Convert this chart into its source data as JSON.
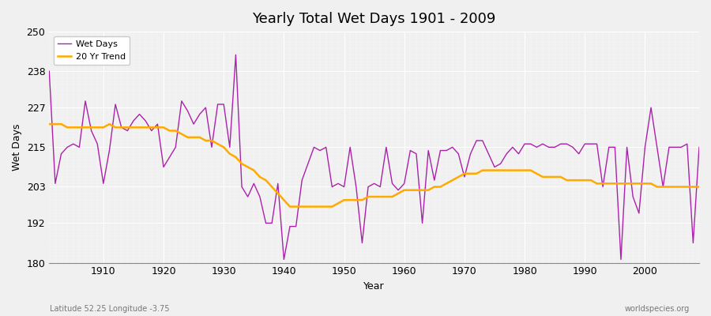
{
  "title": "Yearly Total Wet Days 1901 - 2009",
  "xlabel": "Year",
  "ylabel": "Wet Days",
  "subtitle_left": "Latitude 52.25 Longitude -3.75",
  "subtitle_right": "worldspecies.org",
  "ylim": [
    180,
    250
  ],
  "yticks": [
    180,
    192,
    203,
    215,
    227,
    238,
    250
  ],
  "bg_color": "#f0f0f0",
  "plot_bg_color": "#f0f0f0",
  "wet_days_color": "#aa22aa",
  "trend_color": "#ffaa00",
  "legend_labels": [
    "Wet Days",
    "20 Yr Trend"
  ],
  "years": [
    1901,
    1902,
    1903,
    1904,
    1905,
    1906,
    1907,
    1908,
    1909,
    1910,
    1911,
    1912,
    1913,
    1914,
    1915,
    1916,
    1917,
    1918,
    1919,
    1920,
    1921,
    1922,
    1923,
    1924,
    1925,
    1926,
    1927,
    1928,
    1929,
    1930,
    1931,
    1932,
    1933,
    1934,
    1935,
    1936,
    1937,
    1938,
    1939,
    1940,
    1941,
    1942,
    1943,
    1944,
    1945,
    1946,
    1947,
    1948,
    1949,
    1950,
    1951,
    1952,
    1953,
    1954,
    1955,
    1956,
    1957,
    1958,
    1959,
    1960,
    1961,
    1962,
    1963,
    1964,
    1965,
    1966,
    1967,
    1968,
    1969,
    1970,
    1971,
    1972,
    1973,
    1974,
    1975,
    1976,
    1977,
    1978,
    1979,
    1980,
    1981,
    1982,
    1983,
    1984,
    1985,
    1986,
    1987,
    1988,
    1989,
    1990,
    1991,
    1992,
    1993,
    1994,
    1995,
    1996,
    1997,
    1998,
    1999,
    2000,
    2001,
    2002,
    2003,
    2004,
    2005,
    2006,
    2007,
    2008,
    2009
  ],
  "wet_days": [
    238,
    204,
    213,
    215,
    216,
    215,
    229,
    220,
    216,
    204,
    214,
    228,
    221,
    220,
    223,
    225,
    223,
    220,
    222,
    209,
    212,
    215,
    229,
    226,
    222,
    225,
    227,
    215,
    228,
    228,
    215,
    243,
    203,
    200,
    204,
    200,
    192,
    192,
    204,
    181,
    191,
    191,
    205,
    210,
    215,
    214,
    215,
    203,
    204,
    203,
    215,
    203,
    186,
    203,
    204,
    203,
    215,
    204,
    202,
    204,
    214,
    213,
    192,
    214,
    205,
    214,
    214,
    215,
    213,
    206,
    213,
    217,
    217,
    213,
    209,
    210,
    213,
    215,
    213,
    216,
    216,
    215,
    216,
    215,
    215,
    216,
    216,
    215,
    213,
    216,
    216,
    216,
    203,
    215,
    215,
    181,
    215,
    200,
    195,
    215,
    227,
    215,
    203,
    215,
    215,
    215,
    216,
    186,
    215
  ],
  "trend": [
    222,
    222,
    222,
    221,
    221,
    221,
    221,
    221,
    221,
    221,
    222,
    221,
    221,
    221,
    221,
    221,
    221,
    221,
    221,
    221,
    220,
    220,
    219,
    218,
    218,
    218,
    217,
    217,
    216,
    215,
    213,
    212,
    210,
    209,
    208,
    206,
    205,
    203,
    201,
    199,
    197,
    197,
    197,
    197,
    197,
    197,
    197,
    197,
    198,
    199,
    199,
    199,
    199,
    200,
    200,
    200,
    200,
    200,
    201,
    202,
    202,
    202,
    202,
    202,
    203,
    203,
    204,
    205,
    206,
    207,
    207,
    207,
    208,
    208,
    208,
    208,
    208,
    208,
    208,
    208,
    208,
    207,
    206,
    206,
    206,
    206,
    205,
    205,
    205,
    205,
    205,
    204,
    204,
    204,
    204,
    204,
    204,
    204,
    204,
    204,
    204,
    203,
    203,
    203,
    203,
    203,
    203,
    203,
    203
  ]
}
